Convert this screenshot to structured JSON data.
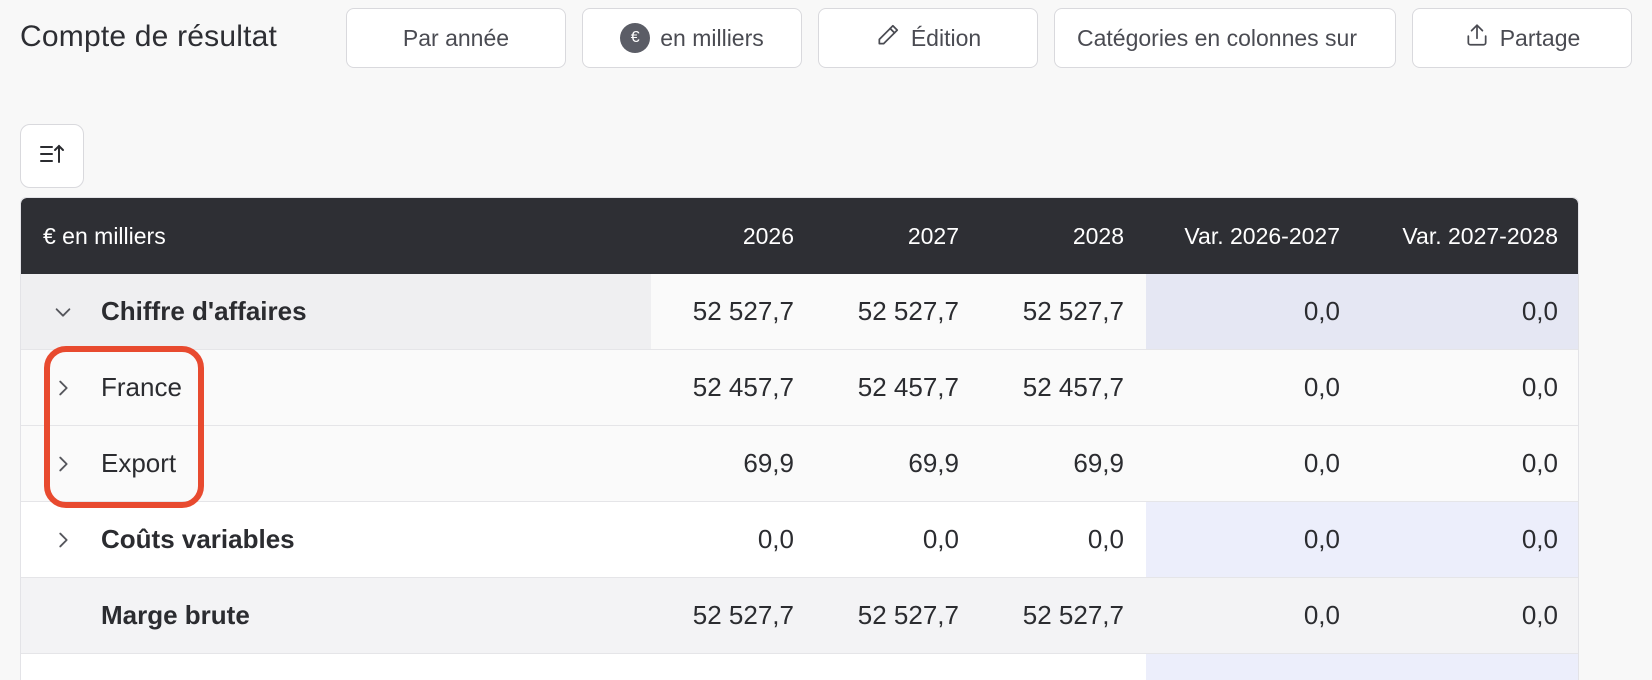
{
  "title": "Compte de résultat",
  "toolbar": {
    "period_label": "Par année",
    "unit_icon": "€",
    "unit_label": "en milliers",
    "edit_label": "Édition",
    "categories_label": "Catégories en colonnes sur",
    "share_label": "Partage"
  },
  "table": {
    "header": {
      "unit": "€ en milliers",
      "y2026": "2026",
      "y2027": "2027",
      "y2028": "2028",
      "var1": "Var. 2026-2027",
      "var2": "Var. 2027-2028"
    },
    "rows": [
      {
        "label": "Chiffre d'affaires",
        "v2026": "52 527,7",
        "v2027": "52 527,7",
        "v2028": "52 527,7",
        "var1": "0,0",
        "var2": "0,0"
      },
      {
        "label": "France",
        "v2026": "52 457,7",
        "v2027": "52 457,7",
        "v2028": "52 457,7",
        "var1": "0,0",
        "var2": "0,0"
      },
      {
        "label": "Export",
        "v2026": "69,9",
        "v2027": "69,9",
        "v2028": "69,9",
        "var1": "0,0",
        "var2": "0,0"
      },
      {
        "label": "Coûts variables",
        "v2026": "0,0",
        "v2027": "0,0",
        "v2028": "0,0",
        "var1": "0,0",
        "var2": "0,0"
      },
      {
        "label": "Marge brute",
        "v2026": "52 527,7",
        "v2027": "52 527,7",
        "v2028": "52 527,7",
        "var1": "0,0",
        "var2": "0,0"
      }
    ]
  },
  "colors": {
    "header_bg": "#2e2f34",
    "variance_col_bg": "#e5e7f3",
    "highlight": "#e84a2f"
  }
}
